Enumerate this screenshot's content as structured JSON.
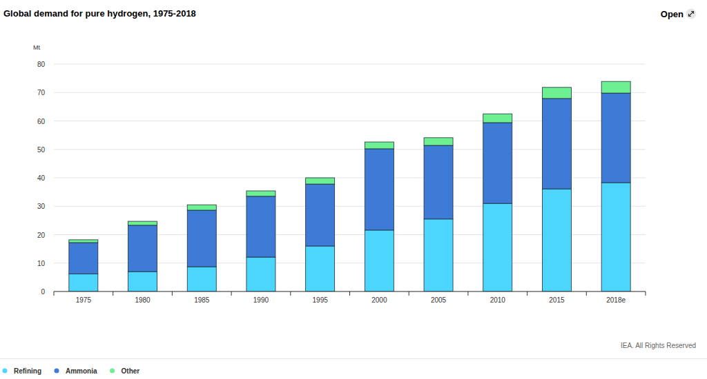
{
  "chart_data": {
    "type": "bar",
    "title": "Global demand for pure hydrogen, 1975-2018",
    "button": "Open",
    "ylabel": "Mt",
    "source": "IEA. All Rights Reserved",
    "categories": [
      "1975",
      "1980",
      "1985",
      "1990",
      "1995",
      "2000",
      "2005",
      "2010",
      "2015",
      "2018e"
    ],
    "series": [
      {
        "name": "Refining",
        "color": "#4dd6fd",
        "values": [
          6.2,
          7.0,
          8.7,
          12.1,
          16.0,
          21.6,
          25.5,
          31.0,
          36.1,
          38.3
        ]
      },
      {
        "name": "Ammonia",
        "color": "#3e7bd6",
        "values": [
          11.0,
          16.3,
          19.9,
          21.4,
          21.8,
          28.6,
          25.9,
          28.4,
          31.8,
          31.5
        ]
      },
      {
        "name": "Other",
        "color": "#6df092",
        "values": [
          1.0,
          1.4,
          1.9,
          1.9,
          2.2,
          2.4,
          2.7,
          3.1,
          3.9,
          4.1
        ]
      }
    ],
    "ylim": [
      0,
      80
    ],
    "yticks": [
      0,
      10,
      20,
      30,
      40,
      50,
      60,
      70,
      80
    ],
    "grid": true,
    "stacked": true,
    "legend": "bottom-left"
  }
}
